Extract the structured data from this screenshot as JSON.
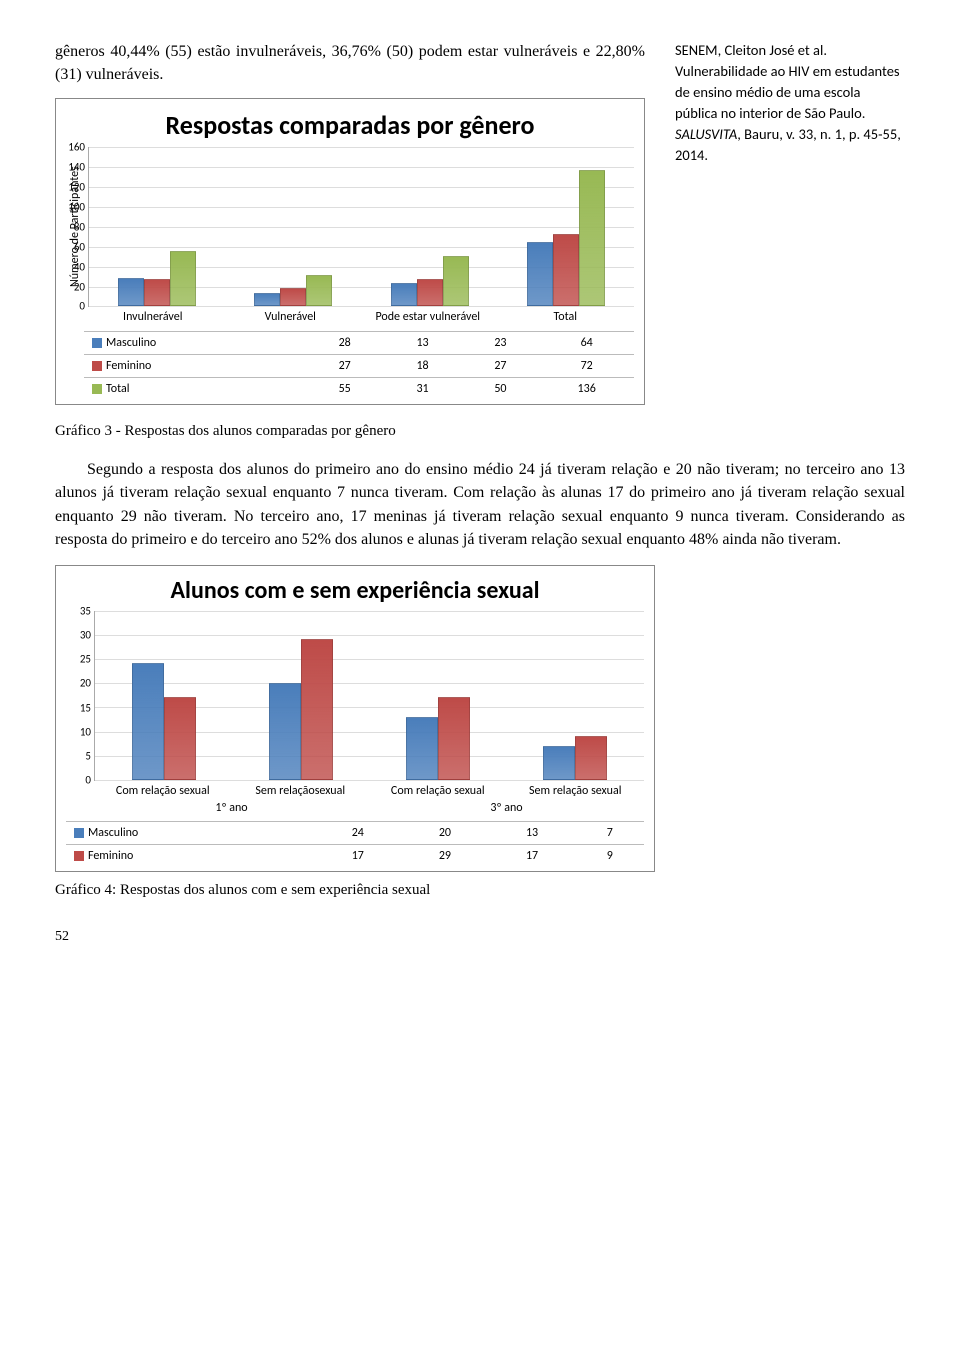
{
  "page": {
    "number": "52",
    "intro": "gêneros 40,44% (55) estão invulneráveis, 36,76% (50) podem estar vulneráveis e 22,80% (31) vulneráveis.",
    "caption1": "Gráfico 3 - Respostas dos alunos comparadas por gênero",
    "body": "Segundo a resposta dos alunos do primeiro ano do ensino médio 24 já tiveram relação e 20 não tiveram; no terceiro ano 13 alunos já tiveram relação sexual enquanto 7 nunca tiveram. Com relação às alunas 17 do primeiro ano já tiveram relação sexual enquanto 29 não tiveram. No terceiro ano, 17 meninas já tiveram relação sexual enquanto 9 nunca tiveram. Considerando as resposta do primeiro e do terceiro ano 52% dos alunos e alunas já tiveram relação sexual enquanto 48% ainda não tiveram.",
    "caption2": "Gráfico 4: Respostas dos alunos com e sem experiência sexual"
  },
  "citation": {
    "authors": "SENEM, Cleiton José et al.",
    "title": " Vulnerabilidade ao HIV em estudantes de ensino médio de uma escola pública no interior de São Paulo. ",
    "journal_italic": "SALUSVITA",
    "journal_rest": ", Bauru, v. 33, n. 1, p. 45-55, 2014."
  },
  "chart1": {
    "title": "Respostas comparadas por gênero",
    "ylabel": "Número de Participantes",
    "ymax": 160,
    "yticks": [
      0,
      20,
      40,
      60,
      80,
      100,
      120,
      140,
      160
    ],
    "categories": [
      "Invulnerável",
      "Vulnerável",
      "Pode estar vulnerável",
      "Total"
    ],
    "series": [
      {
        "label": "Masculino",
        "color": "#4a7ebb",
        "values": [
          28,
          13,
          23,
          64
        ],
        "swatch": "#4a7ebb"
      },
      {
        "label": "Feminino",
        "color": "#be4b48",
        "values": [
          27,
          18,
          27,
          72
        ],
        "swatch": "#be4b48"
      },
      {
        "label": "Total",
        "color": "#98b954",
        "values": [
          55,
          31,
          50,
          136
        ],
        "swatch": "#98b954"
      }
    ]
  },
  "chart2": {
    "title": "Alunos com e sem experiência sexual",
    "ymax": 35,
    "yticks": [
      0,
      5,
      10,
      15,
      20,
      25,
      30,
      35
    ],
    "super_categories": [
      "1º ano",
      "3º ano"
    ],
    "categories": [
      "Com relação sexual",
      "Sem relaçãosexual",
      "Com relação sexual",
      "Sem relação sexual"
    ],
    "series": [
      {
        "label": "Masculino",
        "color": "#4a7ebb",
        "values": [
          24,
          20,
          13,
          7
        ],
        "swatch": "#4a7ebb"
      },
      {
        "label": "Feminino",
        "color": "#be4b48",
        "values": [
          17,
          29,
          17,
          9
        ],
        "swatch": "#be4b48"
      }
    ]
  }
}
